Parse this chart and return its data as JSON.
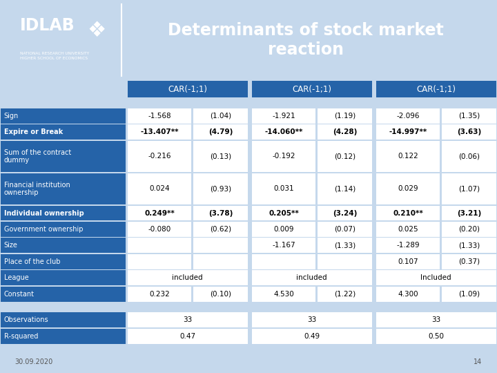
{
  "title": "Determinants of stock market\nreaction",
  "header_bg": "#2E5FA3",
  "table_bg": "#FFFFFF",
  "outer_bg": "#C5D8EC",
  "dark_bg": "#2563A8",
  "footer_text": [
    "30.09.2020",
    "14"
  ],
  "col_headers": [
    "CAR(-1;1)",
    "CAR(-1;1)",
    "CAR(-1;1)"
  ],
  "row_labels": [
    "Sign",
    "Expire or Break",
    "Sum of the contract\ndummy",
    "Financial institution\nownership",
    "Individual ownership",
    "Government ownership",
    "Size",
    "Place of the club",
    "League",
    "Constant",
    "",
    "Observations",
    "R-squared",
    ""
  ],
  "data": [
    [
      "-1.568",
      "(1.04)",
      "-1.921",
      "(1.19)",
      "-2.096",
      "(1.35)"
    ],
    [
      "-13.407**",
      "(4.79)",
      "-14.060**",
      "(4.28)",
      "-14.997**",
      "(3.63)"
    ],
    [
      "-0.216",
      "(0.13)",
      "-0.192",
      "(0.12)",
      "0.122",
      "(0.06)"
    ],
    [
      "0.024",
      "(0.93)",
      "0.031",
      "(1.14)",
      "0.029",
      "(1.07)"
    ],
    [
      "0.249**",
      "(3.78)",
      "0.205**",
      "(3.24)",
      "0.210**",
      "(3.21)"
    ],
    [
      "-0.080",
      "(0.62)",
      "0.009",
      "(0.07)",
      "0.025",
      "(0.20)"
    ],
    [
      "",
      "",
      "-1.167",
      "(1.33)",
      "-1.289",
      "(1.33)"
    ],
    [
      "",
      "",
      "",
      "",
      "0.107",
      "(0.37)"
    ],
    [
      "included",
      "",
      "included",
      "",
      "Included",
      ""
    ],
    [
      "0.232",
      "(0.10)",
      "4.530",
      "(1.22)",
      "4.300",
      "(1.09)"
    ],
    [
      "",
      "",
      "",
      "",
      "",
      ""
    ],
    [
      "33",
      "",
      "33",
      "",
      "33",
      ""
    ],
    [
      "0.47",
      "",
      "0.49",
      "",
      "0.50",
      ""
    ],
    [
      "",
      "",
      "",
      "",
      "",
      ""
    ]
  ],
  "bold_rows": [
    1,
    4
  ],
  "row_heights": [
    1.0,
    1.0,
    2.0,
    2.0,
    1.0,
    1.0,
    1.0,
    1.0,
    1.0,
    1.0,
    0.6,
    1.0,
    1.0,
    0.5
  ]
}
